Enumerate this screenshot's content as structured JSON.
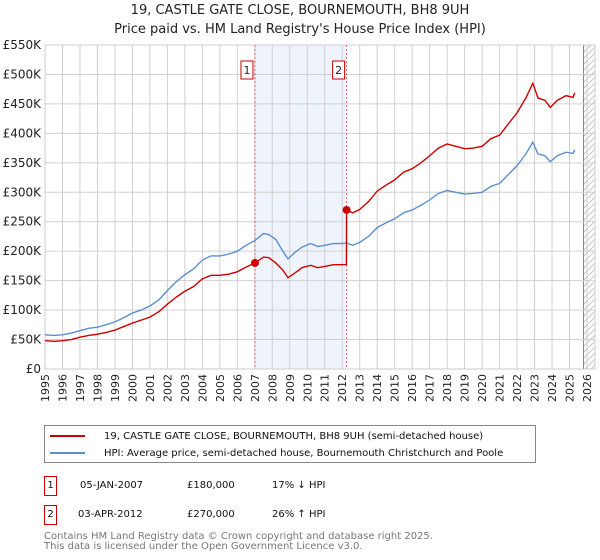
{
  "title": "19, CASTLE GATE CLOSE, BOURNEMOUTH, BH8 9UH",
  "subtitle": "Price paid vs. HM Land Registry's House Price Index (HPI)",
  "chart_data": {
    "type": "line",
    "xlim": [
      1995,
      2026
    ],
    "ylim": [
      0,
      550000
    ],
    "x_ticks": [
      "1995",
      "1996",
      "1997",
      "1998",
      "1999",
      "2000",
      "2001",
      "2002",
      "2003",
      "2004",
      "2005",
      "2006",
      "2007",
      "2008",
      "2009",
      "2010",
      "2011",
      "2012",
      "2013",
      "2014",
      "2015",
      "2016",
      "2017",
      "2018",
      "2019",
      "2020",
      "2021",
      "2022",
      "2023",
      "2024",
      "2025",
      "2026"
    ],
    "y_ticks": [
      {
        "v": 0,
        "label": "£0"
      },
      {
        "v": 50000,
        "label": "£50K"
      },
      {
        "v": 100000,
        "label": "£100K"
      },
      {
        "v": 150000,
        "label": "£150K"
      },
      {
        "v": 200000,
        "label": "£200K"
      },
      {
        "v": 250000,
        "label": "£250K"
      },
      {
        "v": 300000,
        "label": "£300K"
      },
      {
        "v": 350000,
        "label": "£350K"
      },
      {
        "v": 400000,
        "label": "£400K"
      },
      {
        "v": 450000,
        "label": "£450K"
      },
      {
        "v": 500000,
        "label": "£500K"
      },
      {
        "v": 550000,
        "label": "£550K"
      }
    ],
    "grid": true,
    "shaded_range": [
      2007.01,
      2012.25
    ],
    "future_hatch_from": 2025.8,
    "series": [
      {
        "name": "19, CASTLE GATE CLOSE, BOURNEMOUTH, BH8 9UH (semi-detached house)",
        "color": "#cc0000",
        "points": [
          [
            1995,
            48
          ],
          [
            1995.5,
            47
          ],
          [
            1996,
            48
          ],
          [
            1996.5,
            50
          ],
          [
            1997,
            54
          ],
          [
            1997.5,
            57
          ],
          [
            1998,
            59
          ],
          [
            1998.5,
            62
          ],
          [
            1999,
            66
          ],
          [
            1999.5,
            72
          ],
          [
            2000,
            78
          ],
          [
            2000.5,
            83
          ],
          [
            2001,
            88
          ],
          [
            2001.5,
            97
          ],
          [
            2002,
            110
          ],
          [
            2002.5,
            122
          ],
          [
            2003,
            132
          ],
          [
            2003.5,
            140
          ],
          [
            2004,
            153
          ],
          [
            2004.5,
            159
          ],
          [
            2005,
            159
          ],
          [
            2005.5,
            161
          ],
          [
            2006,
            165
          ],
          [
            2006.5,
            173
          ],
          [
            2007.01,
            180
          ],
          [
            2007.5,
            190
          ],
          [
            2007.8,
            189
          ],
          [
            2008.2,
            180
          ],
          [
            2008.6,
            168
          ],
          [
            2008.9,
            155
          ],
          [
            2009.3,
            163
          ],
          [
            2009.7,
            172
          ],
          [
            2010.2,
            176
          ],
          [
            2010.6,
            172
          ],
          [
            2011,
            174
          ],
          [
            2011.5,
            177
          ],
          [
            2012.24,
            177
          ],
          [
            2012.25,
            270
          ],
          [
            2012.6,
            265
          ],
          [
            2013,
            271
          ],
          [
            2013.5,
            284
          ],
          [
            2014,
            302
          ],
          [
            2014.5,
            312
          ],
          [
            2015,
            321
          ],
          [
            2015.5,
            334
          ],
          [
            2016,
            340
          ],
          [
            2016.5,
            350
          ],
          [
            2017,
            362
          ],
          [
            2017.5,
            375
          ],
          [
            2018,
            382
          ],
          [
            2018.5,
            378
          ],
          [
            2019,
            374
          ],
          [
            2019.5,
            375
          ],
          [
            2020,
            378
          ],
          [
            2020.5,
            391
          ],
          [
            2021,
            397
          ],
          [
            2021.5,
            416
          ],
          [
            2022,
            435
          ],
          [
            2022.5,
            460
          ],
          [
            2022.9,
            485
          ],
          [
            2023.2,
            460
          ],
          [
            2023.6,
            456
          ],
          [
            2023.9,
            444
          ],
          [
            2024.3,
            456
          ],
          [
            2024.8,
            464
          ],
          [
            2025.2,
            461
          ],
          [
            2025.3,
            469
          ]
        ]
      },
      {
        "name": "HPI: Average price, semi-detached house, Bournemouth Christchurch and Poole",
        "color": "#5b8fd0",
        "points": [
          [
            1995,
            58
          ],
          [
            1995.5,
            57
          ],
          [
            1996,
            58
          ],
          [
            1996.5,
            61
          ],
          [
            1997,
            65
          ],
          [
            1997.5,
            69
          ],
          [
            1998,
            71
          ],
          [
            1998.5,
            75
          ],
          [
            1999,
            80
          ],
          [
            1999.5,
            87
          ],
          [
            2000,
            95
          ],
          [
            2000.5,
            100
          ],
          [
            2001,
            107
          ],
          [
            2001.5,
            117
          ],
          [
            2002,
            133
          ],
          [
            2002.5,
            148
          ],
          [
            2003,
            160
          ],
          [
            2003.5,
            170
          ],
          [
            2004,
            185
          ],
          [
            2004.5,
            192
          ],
          [
            2005,
            192
          ],
          [
            2005.5,
            195
          ],
          [
            2006,
            200
          ],
          [
            2006.5,
            210
          ],
          [
            2007,
            218
          ],
          [
            2007.5,
            230
          ],
          [
            2007.8,
            228
          ],
          [
            2008.2,
            220
          ],
          [
            2008.6,
            200
          ],
          [
            2008.9,
            187
          ],
          [
            2009.3,
            198
          ],
          [
            2009.7,
            207
          ],
          [
            2010.2,
            213
          ],
          [
            2010.6,
            208
          ],
          [
            2011,
            210
          ],
          [
            2011.5,
            213
          ],
          [
            2012,
            213
          ],
          [
            2012.25,
            214
          ],
          [
            2012.6,
            210
          ],
          [
            2013,
            215
          ],
          [
            2013.5,
            225
          ],
          [
            2014,
            240
          ],
          [
            2014.5,
            248
          ],
          [
            2015,
            255
          ],
          [
            2015.5,
            265
          ],
          [
            2016,
            270
          ],
          [
            2016.5,
            278
          ],
          [
            2017,
            287
          ],
          [
            2017.5,
            298
          ],
          [
            2018,
            303
          ],
          [
            2018.5,
            300
          ],
          [
            2019,
            297
          ],
          [
            2019.5,
            298
          ],
          [
            2020,
            300
          ],
          [
            2020.5,
            310
          ],
          [
            2021,
            315
          ],
          [
            2021.5,
            330
          ],
          [
            2022,
            345
          ],
          [
            2022.5,
            365
          ],
          [
            2022.9,
            385
          ],
          [
            2023.2,
            365
          ],
          [
            2023.6,
            362
          ],
          [
            2023.9,
            352
          ],
          [
            2024.3,
            362
          ],
          [
            2024.8,
            368
          ],
          [
            2025.2,
            366
          ],
          [
            2025.3,
            372
          ]
        ]
      }
    ],
    "y_units": "thousands GBP in points",
    "markers": [
      {
        "label": "1",
        "x": 2007.01,
        "y": 180
      },
      {
        "label": "2",
        "x": 2012.25,
        "y": 270
      }
    ]
  },
  "transactions": [
    {
      "num": "1",
      "date": "05-JAN-2007",
      "price": "£180,000",
      "hpi": "17% ↓ HPI"
    },
    {
      "num": "2",
      "date": "03-APR-2012",
      "price": "£270,000",
      "hpi": "26% ↑ HPI"
    }
  ],
  "footer": [
    "Contains HM Land Registry data © Crown copyright and database right 2025.",
    "This data is licensed under the Open Government Licence v3.0."
  ]
}
